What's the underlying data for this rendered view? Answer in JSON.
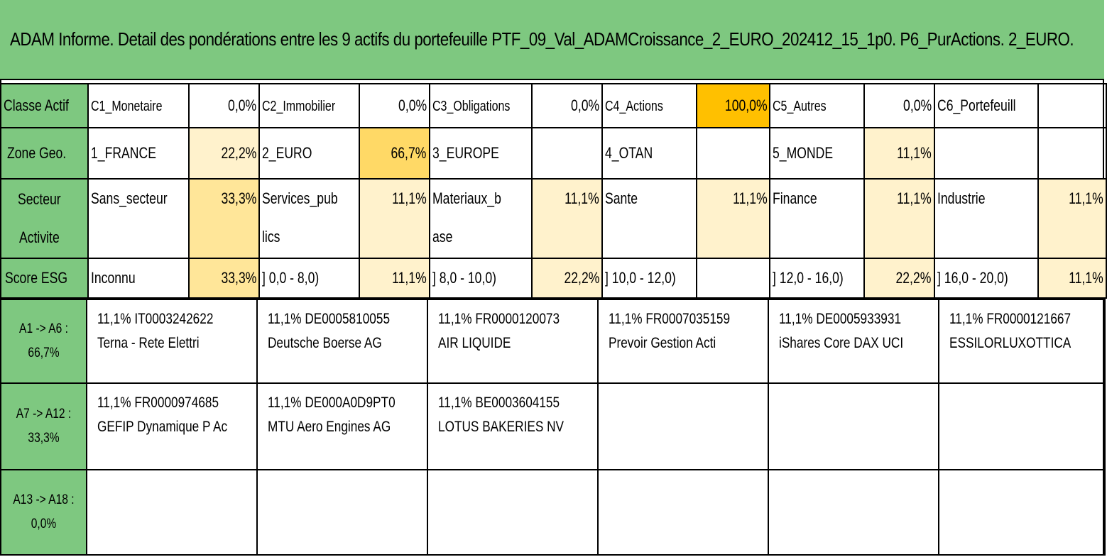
{
  "title": "ADAM Informe. Detail des pondérations entre les 9 actifs du portefeuille PTF_09_Val_ADAMCroissance_2_EURO_202412_15_1p0. P6_PurActions. 2_EURO.",
  "classe_actif": {
    "label": "Classe Actif",
    "items": [
      {
        "name": "C1_Monetaire",
        "pct": "0,0%"
      },
      {
        "name": "C2_Immobilier",
        "pct": "0,0%"
      },
      {
        "name": "C3_Obligations",
        "pct": "0,0%"
      },
      {
        "name": "C4_Actions",
        "pct": "100,0%"
      },
      {
        "name": "C5_Autres",
        "pct": "0,0%"
      },
      {
        "name": "C6_Portefeuill",
        "pct": ""
      }
    ]
  },
  "zone_geo": {
    "label": "Zone Geo.",
    "items": [
      {
        "name": "1_FRANCE",
        "pct": "22,2%"
      },
      {
        "name": "2_EURO",
        "pct": "66,7%"
      },
      {
        "name": "3_EUROPE",
        "pct": ""
      },
      {
        "name": "4_OTAN",
        "pct": ""
      },
      {
        "name": "5_MONDE",
        "pct": "11,1%"
      }
    ]
  },
  "secteur": {
    "label_1": "Secteur",
    "label_2": "Activite",
    "items": [
      {
        "name_1": "Sans_secteur",
        "name_2": "",
        "pct": "33,3%"
      },
      {
        "name_1": "Services_pub",
        "name_2": "lics",
        "pct": "11,1%"
      },
      {
        "name_1": "Materiaux_b",
        "name_2": "ase",
        "pct": "11,1%"
      },
      {
        "name_1": "Sante",
        "name_2": "",
        "pct": "11,1%"
      },
      {
        "name_1": "Finance",
        "name_2": "",
        "pct": "11,1%"
      },
      {
        "name_1": "Industrie",
        "name_2": "",
        "pct": "11,1%"
      }
    ]
  },
  "esg": {
    "label": "Score ESG",
    "items": [
      {
        "name": "Inconnu",
        "pct": "33,3%"
      },
      {
        "name": "] 0,0 - 8,0)",
        "pct": "11,1%"
      },
      {
        "name": "] 8,0 - 10,0)",
        "pct": "22,2%"
      },
      {
        "name": "] 10,0 - 12,0)",
        "pct": ""
      },
      {
        "name": "] 12,0 - 16,0)",
        "pct": "22,2%"
      },
      {
        "name": "] 16,0 - 20,0)",
        "pct": "11,1%"
      }
    ]
  },
  "assets": {
    "rows": [
      {
        "label_1": "A1 -> A6 :",
        "label_2": "66,7%",
        "cells": [
          {
            "line1": "11,1% IT0003242622",
            "line2": "Terna - Rete Elettri"
          },
          {
            "line1": "11,1% DE0005810055",
            "line2": "Deutsche Boerse AG"
          },
          {
            "line1": "11,1% FR0000120073",
            "line2": "AIR LIQUIDE"
          },
          {
            "line1": "11,1% FR0007035159",
            "line2": "Prevoir Gestion Acti"
          },
          {
            "line1": "11,1% DE0005933931",
            "line2": "iShares Core DAX UCI"
          },
          {
            "line1": "11,1% FR0000121667",
            "line2": "ESSILORLUXOTTICA"
          }
        ]
      },
      {
        "label_1": "A7 -> A12 :",
        "label_2": "33,3%",
        "cells": [
          {
            "line1": "11,1% FR0000974685",
            "line2": "GEFIP Dynamique P Ac"
          },
          {
            "line1": "11,1% DE000A0D9PT0",
            "line2": "MTU Aero Engines AG"
          },
          {
            "line1": "11,1% BE0003604155",
            "line2": "LOTUS BAKERIES NV"
          },
          {
            "line1": "",
            "line2": ""
          },
          {
            "line1": "",
            "line2": ""
          },
          {
            "line1": "",
            "line2": ""
          }
        ]
      },
      {
        "label_1": "A13 -> A18 :",
        "label_2": "0,0%",
        "cells": [
          {
            "line1": "",
            "line2": ""
          },
          {
            "line1": "",
            "line2": ""
          },
          {
            "line1": "",
            "line2": ""
          },
          {
            "line1": "",
            "line2": ""
          },
          {
            "line1": "",
            "line2": ""
          },
          {
            "line1": "",
            "line2": ""
          }
        ]
      }
    ]
  },
  "colors": {
    "header_green": "#7ec880",
    "highlight_strong": "#ffc000",
    "highlight_medium": "#ffd966",
    "highlight_light": "#fff2cc"
  }
}
